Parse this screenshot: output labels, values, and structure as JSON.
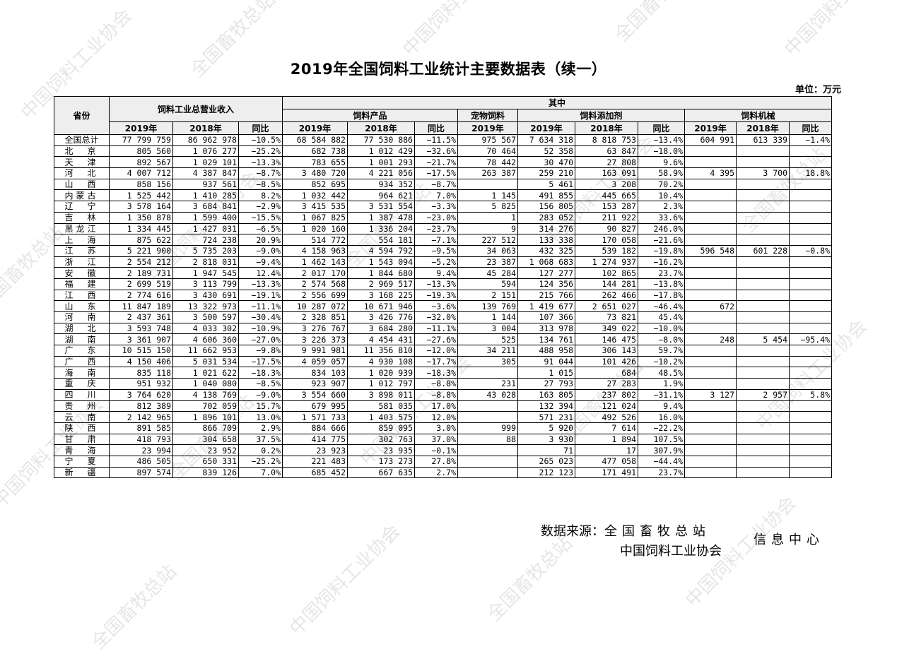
{
  "title": "2019年全国饲料工业统计主要数据表（续一）",
  "unit": "单位：万元",
  "headers": {
    "province": "省份",
    "total_revenue": "饲料工业总营业收入",
    "of_which": "其中",
    "feed_products": "饲料产品",
    "pet_feed": "宠物饲料",
    "additives": "饲料添加剂",
    "machinery": "饲料机械",
    "y2019": "2019年",
    "y2018": "2018年",
    "yoy": "同比"
  },
  "rows": [
    [
      "全国总计",
      "77 799 759",
      "86 962 978",
      "−10.5%",
      "68 584 882",
      "77 530 886",
      "−11.5%",
      "975 567",
      "7 634 318",
      "8 818 753",
      "−13.4%",
      "604 991",
      "613 339",
      "−1.4%"
    ],
    [
      "北　京",
      "805 560",
      "1 076 277",
      "−25.2%",
      "682 738",
      "1 012 429",
      "−32.6%",
      "70 464",
      "52 358",
      "63 847",
      "−18.0%",
      "",
      "",
      ""
    ],
    [
      "天　津",
      "892 567",
      "1 029 101",
      "−13.3%",
      "783 655",
      "1 001 293",
      "−21.7%",
      "78 442",
      "30 470",
      "27 808",
      "9.6%",
      "",
      "",
      ""
    ],
    [
      "河　北",
      "4 007 712",
      "4 387 847",
      "−8.7%",
      "3 480 720",
      "4 221 056",
      "−17.5%",
      "263 387",
      "259 210",
      "163 091",
      "58.9%",
      "4 395",
      "3 700",
      "18.8%"
    ],
    [
      "山　西",
      "858 156",
      "937 561",
      "−8.5%",
      "852 695",
      "934 352",
      "−8.7%",
      "",
      "5 461",
      "3 208",
      "70.2%",
      "",
      "",
      ""
    ],
    [
      "内蒙古",
      "1 525 442",
      "1 410 285",
      "8.2%",
      "1 032 442",
      "964 621",
      "7.0%",
      "1 145",
      "491 855",
      "445 665",
      "10.4%",
      "",
      "",
      ""
    ],
    [
      "辽　宁",
      "3 578 164",
      "3 684 841",
      "−2.9%",
      "3 415 535",
      "3 531 554",
      "−3.3%",
      "5 825",
      "156 805",
      "153 287",
      "2.3%",
      "",
      "",
      ""
    ],
    [
      "吉　林",
      "1 350 878",
      "1 599 400",
      "−15.5%",
      "1 067 825",
      "1 387 478",
      "−23.0%",
      "1",
      "283 052",
      "211 922",
      "33.6%",
      "",
      "",
      ""
    ],
    [
      "黑龙江",
      "1 334 445",
      "1 427 031",
      "−6.5%",
      "1 020 160",
      "1 336 204",
      "−23.7%",
      "9",
      "314 276",
      "90 827",
      "246.0%",
      "",
      "",
      ""
    ],
    [
      "上　海",
      "875 622",
      "724 238",
      "20.9%",
      "514 772",
      "554 181",
      "−7.1%",
      "227 512",
      "133 338",
      "170 058",
      "−21.6%",
      "",
      "",
      ""
    ],
    [
      "江　苏",
      "5 221 900",
      "5 735 203",
      "−9.0%",
      "4 158 963",
      "4 594 792",
      "−9.5%",
      "34 063",
      "432 325",
      "539 182",
      "−19.8%",
      "596 548",
      "601 228",
      "−0.8%"
    ],
    [
      "浙　江",
      "2 554 212",
      "2 818 031",
      "−9.4%",
      "1 462 143",
      "1 543 094",
      "−5.2%",
      "23 387",
      "1 068 683",
      "1 274 937",
      "−16.2%",
      "",
      "",
      ""
    ],
    [
      "安　徽",
      "2 189 731",
      "1 947 545",
      "12.4%",
      "2 017 170",
      "1 844 680",
      "9.4%",
      "45 284",
      "127 277",
      "102 865",
      "23.7%",
      "",
      "",
      ""
    ],
    [
      "福　建",
      "2 699 519",
      "3 113 799",
      "−13.3%",
      "2 574 568",
      "2 969 517",
      "−13.3%",
      "594",
      "124 356",
      "144 281",
      "−13.8%",
      "",
      "",
      ""
    ],
    [
      "江　西",
      "2 774 616",
      "3 430 691",
      "−19.1%",
      "2 556 699",
      "3 168 225",
      "−19.3%",
      "2 151",
      "215 766",
      "262 466",
      "−17.8%",
      "",
      "",
      ""
    ],
    [
      "山　东",
      "11 847 189",
      "13 322 973",
      "−11.1%",
      "10 287 072",
      "10 671 946",
      "−3.6%",
      "139 769",
      "1 419 677",
      "2 651 027",
      "−46.4%",
      "672",
      "",
      ""
    ],
    [
      "河　南",
      "2 437 361",
      "3 500 597",
      "−30.4%",
      "2 328 851",
      "3 426 776",
      "−32.0%",
      "1 144",
      "107 366",
      "73 821",
      "45.4%",
      "",
      "",
      ""
    ],
    [
      "湖　北",
      "3 593 748",
      "4 033 302",
      "−10.9%",
      "3 276 767",
      "3 684 280",
      "−11.1%",
      "3 004",
      "313 978",
      "349 022",
      "−10.0%",
      "",
      "",
      ""
    ],
    [
      "湖　南",
      "3 361 907",
      "4 606 360",
      "−27.0%",
      "3 226 373",
      "4 454 431",
      "−27.6%",
      "525",
      "134 761",
      "146 475",
      "−8.0%",
      "248",
      "5 454",
      "−95.4%"
    ],
    [
      "广　东",
      "10 515 150",
      "11 662 953",
      "−9.8%",
      "9 991 981",
      "11 356 810",
      "−12.0%",
      "34 211",
      "488 958",
      "306 143",
      "59.7%",
      "",
      "",
      ""
    ],
    [
      "广　西",
      "4 150 406",
      "5 031 534",
      "−17.5%",
      "4 059 057",
      "4 930 108",
      "−17.7%",
      "305",
      "91 044",
      "101 426",
      "−10.2%",
      "",
      "",
      ""
    ],
    [
      "海　南",
      "835 118",
      "1 021 622",
      "−18.3%",
      "834 103",
      "1 020 939",
      "−18.3%",
      "",
      "1 015",
      "684",
      "48.5%",
      "",
      "",
      ""
    ],
    [
      "重　庆",
      "951 932",
      "1 040 080",
      "−8.5%",
      "923 907",
      "1 012 797",
      "−8.8%",
      "231",
      "27 793",
      "27 283",
      "1.9%",
      "",
      "",
      ""
    ],
    [
      "四　川",
      "3 764 620",
      "4 138 769",
      "−9.0%",
      "3 554 660",
      "3 898 011",
      "−8.8%",
      "43 028",
      "163 805",
      "237 802",
      "−31.1%",
      "3 127",
      "2 957",
      "5.8%"
    ],
    [
      "贵　州",
      "812 389",
      "702 059",
      "15.7%",
      "679 995",
      "581 035",
      "17.0%",
      "",
      "132 394",
      "121 024",
      "9.4%",
      "",
      "",
      ""
    ],
    [
      "云　南",
      "2 142 965",
      "1 896 101",
      "13.0%",
      "1 571 733",
      "1 403 575",
      "12.0%",
      "",
      "571 231",
      "492 526",
      "16.0%",
      "",
      "",
      ""
    ],
    [
      "陕　西",
      "891 585",
      "866 709",
      "2.9%",
      "884 666",
      "859 095",
      "3.0%",
      "999",
      "5 920",
      "7 614",
      "−22.2%",
      "",
      "",
      ""
    ],
    [
      "甘　肃",
      "418 793",
      "304 658",
      "37.5%",
      "414 775",
      "302 763",
      "37.0%",
      "88",
      "3 930",
      "1 894",
      "107.5%",
      "",
      "",
      ""
    ],
    [
      "青　海",
      "23 994",
      "23 952",
      "0.2%",
      "23 923",
      "23 935",
      "−0.1%",
      "",
      "71",
      "17",
      "307.9%",
      "",
      "",
      ""
    ],
    [
      "宁　夏",
      "486 505",
      "650 331",
      "−25.2%",
      "221 483",
      "173 273",
      "27.8%",
      "",
      "265 023",
      "477 058",
      "−44.4%",
      "",
      "",
      ""
    ],
    [
      "新　疆",
      "897 574",
      "839 126",
      "7.0%",
      "685 452",
      "667 635",
      "2.7%",
      "",
      "212 123",
      "171 491",
      "23.7%",
      "",
      "",
      ""
    ]
  ],
  "source": {
    "label": "数据来源：",
    "org1": "全国畜牧总站",
    "org2": "中国饲料工业协会",
    "org_tail": "信息中心"
  },
  "watermarks": [
    "中国饲料工业协会",
    "全国畜牧总站"
  ]
}
